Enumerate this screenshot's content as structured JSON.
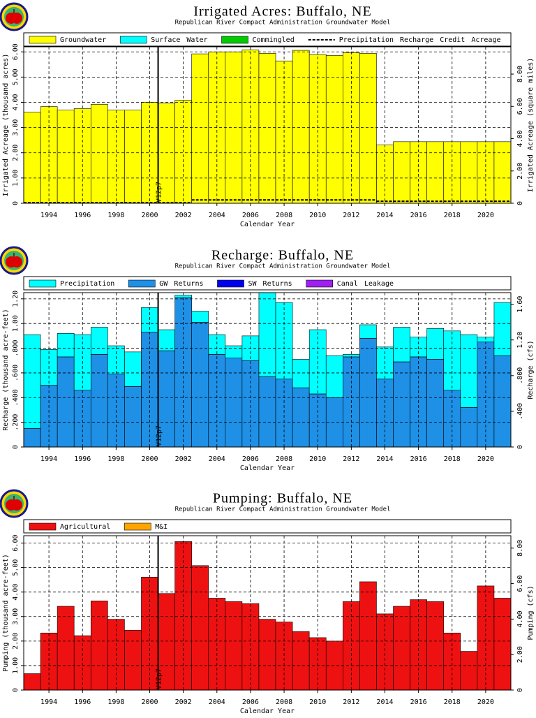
{
  "chart_data": [
    {
      "type": "bar",
      "stacked": true,
      "title": "Irrigated Acres: Buffalo, NE",
      "subtitle": "Republican River Compact Administration Groundwater Model",
      "x_label": "Calendar Year",
      "y_label": "Irrigated Acreage (thousand acres)",
      "y2_label": "Irrigated Acreage (square miles)",
      "annotation": {
        "text": "V12p7",
        "x": 2000.5
      },
      "x": [
        1993,
        1994,
        1995,
        1996,
        1997,
        1998,
        1999,
        2000,
        2001,
        2002,
        2003,
        2004,
        2005,
        2006,
        2007,
        2008,
        2009,
        2010,
        2011,
        2012,
        2013,
        2014,
        2015,
        2016,
        2017,
        2018,
        2019,
        2020,
        2021
      ],
      "xlim": [
        1992.5,
        2021.5
      ],
      "xticks": [
        1994,
        1996,
        1998,
        2000,
        2002,
        2004,
        2006,
        2008,
        2010,
        2012,
        2014,
        2016,
        2018,
        2020
      ],
      "ylim": [
        0,
        6.2
      ],
      "yticks": [
        0,
        {
          "value": 1,
          "label": "1.00"
        },
        {
          "value": 2,
          "label": "2.00"
        },
        {
          "value": 3,
          "label": "3.00"
        },
        {
          "value": 4,
          "label": "4.00"
        },
        {
          "value": 5,
          "label": "5.00"
        },
        {
          "value": 6,
          "label": "6.00"
        }
      ],
      "y2lim": [
        0,
        9.69
      ],
      "y2ticks": [
        0,
        {
          "value": 2,
          "label": "2.00"
        },
        {
          "value": 4,
          "label": "4.00"
        },
        {
          "value": 6,
          "label": "6.00"
        },
        {
          "value": 8,
          "label": "8.00"
        }
      ],
      "grid": true,
      "series": [
        {
          "name": "Groundwater",
          "color": "#ffff00",
          "values": [
            3.61,
            3.83,
            3.69,
            3.75,
            3.92,
            3.69,
            3.69,
            4.0,
            3.97,
            4.08,
            5.92,
            6.0,
            6.0,
            6.08,
            5.94,
            5.64,
            6.06,
            5.89,
            5.86,
            5.97,
            5.94,
            2.31,
            2.44,
            2.44,
            2.44,
            2.44,
            2.44,
            2.44,
            2.44
          ]
        },
        {
          "name": "Surface Water",
          "color": "#00ffff",
          "values": [
            0,
            0,
            0,
            0,
            0,
            0,
            0,
            0,
            0,
            0,
            0,
            0,
            0,
            0,
            0,
            0,
            0,
            0,
            0,
            0,
            0,
            0,
            0,
            0,
            0,
            0,
            0,
            0,
            0
          ]
        },
        {
          "name": "Commingled",
          "color": "#00cc00",
          "values": [
            0,
            0,
            0,
            0,
            0,
            0,
            0,
            0,
            0,
            0,
            0,
            0,
            0,
            0,
            0,
            0,
            0,
            0,
            0,
            0,
            0,
            0,
            0,
            0,
            0,
            0,
            0,
            0,
            0
          ]
        },
        {
          "name": "Precipitation Recharge Credit Acreage",
          "color": "#000000",
          "type": "line",
          "dashed": true,
          "values": [
            0.02,
            0.02,
            0.02,
            0.02,
            0.02,
            0.02,
            0.02,
            0.02,
            0.02,
            0.02,
            0.13,
            0.13,
            0.13,
            0.13,
            0.13,
            0.13,
            0.13,
            0.13,
            0.13,
            0.13,
            0.13,
            0.08,
            0.08,
            0.08,
            0.08,
            0.08,
            0.08,
            0.08,
            0.08
          ]
        }
      ]
    },
    {
      "type": "bar",
      "stacked": true,
      "title": "Recharge: Buffalo, NE",
      "subtitle": "Republican River Compact Administration Groundwater Model",
      "x_label": "Calendar Year",
      "y_label": "Recharge (thousand acre-feet)",
      "y2_label": "Recharge (cfs)",
      "annotation": {
        "text": "V12p7",
        "x": 2000.5
      },
      "x": [
        1993,
        1994,
        1995,
        1996,
        1997,
        1998,
        1999,
        2000,
        2001,
        2002,
        2003,
        2004,
        2005,
        2006,
        2007,
        2008,
        2009,
        2010,
        2011,
        2012,
        2013,
        2014,
        2015,
        2016,
        2017,
        2018,
        2019,
        2020,
        2021
      ],
      "xlim": [
        1992.5,
        2021.5
      ],
      "xticks": [
        1994,
        1996,
        1998,
        2000,
        2002,
        2004,
        2006,
        2008,
        2010,
        2012,
        2014,
        2016,
        2018,
        2020
      ],
      "ylim": [
        0,
        1.25
      ],
      "yticks": [
        0,
        {
          "value": 0.2,
          "label": ".200"
        },
        {
          "value": 0.4,
          "label": ".400"
        },
        {
          "value": 0.6,
          "label": ".600"
        },
        {
          "value": 0.8,
          "label": ".800"
        },
        {
          "value": 1,
          "label": "1.00"
        },
        {
          "value": 1.2,
          "label": "1.20"
        }
      ],
      "y2lim": [
        0,
        1.73
      ],
      "y2ticks": [
        0,
        {
          "value": 0.4,
          "label": ".400"
        },
        {
          "value": 0.8,
          "label": ".800"
        },
        {
          "value": 1.2,
          "label": "1.20"
        },
        {
          "value": 1.6,
          "label": "1.60"
        }
      ],
      "grid": true,
      "series": [
        {
          "name": "GW Returns",
          "color": "#1e90e6",
          "values": [
            0.15,
            0.5,
            0.73,
            0.46,
            0.75,
            0.59,
            0.49,
            0.93,
            0.78,
            1.21,
            1.01,
            0.75,
            0.72,
            0.7,
            0.57,
            0.55,
            0.48,
            0.43,
            0.4,
            0.73,
            0.88,
            0.55,
            0.69,
            0.73,
            0.71,
            0.46,
            0.32,
            0.85,
            0.74
          ]
        },
        {
          "name": "Precipitation",
          "color": "#00ffff",
          "values": [
            0.76,
            0.29,
            0.19,
            0.45,
            0.22,
            0.23,
            0.28,
            0.2,
            0.17,
            0.02,
            0.09,
            0.16,
            0.1,
            0.2,
            0.68,
            0.62,
            0.23,
            0.52,
            0.34,
            0.02,
            0.11,
            0.26,
            0.28,
            0.16,
            0.25,
            0.48,
            0.59,
            0.04,
            0.43
          ]
        },
        {
          "name": "SW Returns",
          "color": "#0000ee",
          "values": [
            0,
            0,
            0,
            0,
            0,
            0,
            0,
            0,
            0,
            0,
            0,
            0,
            0,
            0,
            0,
            0,
            0,
            0,
            0,
            0,
            0,
            0,
            0,
            0,
            0,
            0,
            0,
            0,
            0
          ]
        },
        {
          "name": "Canal Leakage",
          "color": "#a020f0",
          "values": [
            0,
            0,
            0,
            0,
            0,
            0,
            0,
            0,
            0,
            0,
            0,
            0,
            0,
            0,
            0,
            0,
            0,
            0,
            0,
            0,
            0,
            0,
            0,
            0,
            0,
            0,
            0,
            0,
            0
          ]
        }
      ],
      "legend_order": [
        1,
        0,
        2,
        3
      ]
    },
    {
      "type": "bar",
      "stacked": true,
      "title": "Pumping: Buffalo, NE",
      "subtitle": "Republican River Compact Administration Groundwater Model",
      "x_label": "Calendar Year",
      "y_label": "Pumping (thousand acre-feet)",
      "y2_label": "Pumping (cfs)",
      "annotation": {
        "text": "V12p7",
        "x": 2000.5
      },
      "x": [
        1993,
        1994,
        1995,
        1996,
        1997,
        1998,
        1999,
        2000,
        2001,
        2002,
        2003,
        2004,
        2005,
        2006,
        2007,
        2008,
        2009,
        2010,
        2011,
        2012,
        2013,
        2014,
        2015,
        2016,
        2017,
        2018,
        2019,
        2020,
        2021
      ],
      "xlim": [
        1992.5,
        2021.5
      ],
      "xticks": [
        1994,
        1996,
        1998,
        2000,
        2002,
        2004,
        2006,
        2008,
        2010,
        2012,
        2014,
        2016,
        2018,
        2020
      ],
      "ylim": [
        0,
        6.3
      ],
      "yticks": [
        0,
        {
          "value": 1,
          "label": "1.00"
        },
        {
          "value": 2,
          "label": "2.00"
        },
        {
          "value": 3,
          "label": "3.00"
        },
        {
          "value": 4,
          "label": "4.00"
        },
        {
          "value": 5,
          "label": "5.00"
        },
        {
          "value": 6,
          "label": "6.00"
        }
      ],
      "y2lim": [
        0,
        8.7
      ],
      "y2ticks": [
        0,
        {
          "value": 2,
          "label": "2.00"
        },
        {
          "value": 4,
          "label": "4.00"
        },
        {
          "value": 6,
          "label": "6.00"
        },
        {
          "value": 8,
          "label": "8.00"
        }
      ],
      "grid": true,
      "series": [
        {
          "name": "Agricultural",
          "color": "#ee1111",
          "values": [
            0.67,
            2.33,
            3.42,
            2.22,
            3.64,
            2.89,
            2.44,
            4.61,
            3.94,
            6.06,
            5.08,
            3.75,
            3.61,
            3.53,
            2.89,
            2.78,
            2.39,
            2.14,
            2.0,
            3.61,
            4.42,
            3.11,
            3.42,
            3.69,
            3.61,
            2.33,
            1.58,
            4.25,
            3.75
          ]
        },
        {
          "name": "M&I",
          "color": "#ffa500",
          "values": [
            0,
            0,
            0,
            0,
            0,
            0,
            0,
            0,
            0,
            0,
            0,
            0,
            0,
            0,
            0,
            0,
            0,
            0,
            0,
            0,
            0,
            0,
            0,
            0,
            0,
            0,
            0,
            0,
            0
          ]
        }
      ]
    }
  ]
}
